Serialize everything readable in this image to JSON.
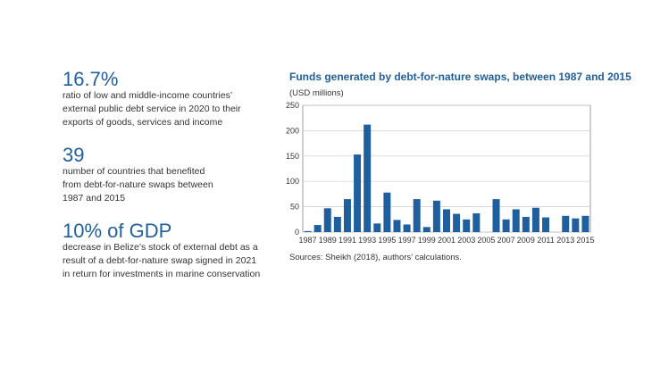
{
  "stats": [
    {
      "figure": "16.7%",
      "lines": [
        "ratio of low and middle-income countries’",
        "external public debt service in 2020 to their",
        "exports of goods, services and income"
      ]
    },
    {
      "figure": "39",
      "lines": [
        "number of countries that benefited",
        "from debt-for-nature swaps between",
        "1987 and 2015"
      ]
    },
    {
      "figure": "10% of GDP",
      "lines": [
        "decrease in Belize’s stock of external debt as a",
        "result of a debt-for-nature swap signed in 2021",
        "in return for investments in marine conservation"
      ]
    }
  ],
  "chart_data": {
    "type": "bar",
    "title": "Funds generated by debt-for-nature swaps, between 1987 and 2015",
    "subtitle": "(USD millions)",
    "source": "Sources: Sheikh (2018), authors’ calculations.",
    "categories": [
      "1987",
      null,
      "1989",
      null,
      "1991",
      null,
      "1993",
      null,
      "1995",
      null,
      "1997",
      null,
      "1999",
      null,
      "2001",
      null,
      "2003",
      null,
      "2005",
      null,
      "2007",
      null,
      "2009",
      null,
      "2011",
      null,
      "2013",
      null,
      "2015"
    ],
    "values": [
      2,
      14,
      47,
      30,
      65,
      153,
      212,
      17,
      78,
      24,
      15,
      65,
      10,
      62,
      45,
      36,
      25,
      37,
      0,
      65,
      25,
      45,
      30,
      48,
      29,
      0,
      32,
      27,
      32
    ],
    "color": "#1f5f9e",
    "ylim": [
      0,
      250
    ],
    "yticks": [
      0,
      50,
      100,
      150,
      200,
      250
    ],
    "grid": true
  }
}
